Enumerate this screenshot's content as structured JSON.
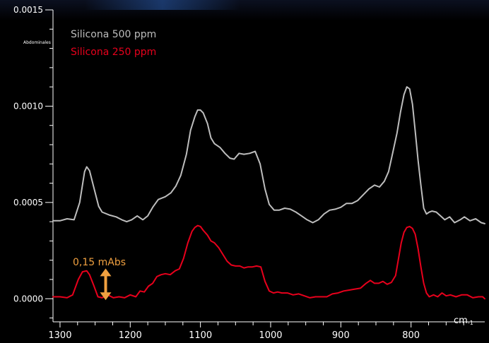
{
  "chart_data": {
    "type": "line",
    "ylabel": "Abdominales",
    "xunit": "cm",
    "xunit_exp": "-1",
    "x_axis_reversed": true,
    "xlim": [
      1310,
      695
    ],
    "ylim": [
      -0.00012,
      0.0015
    ],
    "yticks": [
      {
        "value": 0.0015,
        "label": "0.0015"
      },
      {
        "value": 0.001,
        "label": "0.0010"
      },
      {
        "value": 0.0005,
        "label": "0.0005"
      },
      {
        "value": 0.0,
        "label": "0.0000"
      }
    ],
    "xticks": [
      {
        "value": 1300,
        "label": "1300"
      },
      {
        "value": 1200,
        "label": "1200"
      },
      {
        "value": 1100,
        "label": "1100"
      },
      {
        "value": 1000,
        "label": "1000"
      },
      {
        "value": 900,
        "label": "900"
      },
      {
        "value": 800,
        "label": "800"
      }
    ],
    "grid": false,
    "legend_position": "top-left",
    "series": [
      {
        "name": "Silicona 500 ppm",
        "color": "#bdbdbd",
        "x": [
          1310,
          1300,
          1290,
          1280,
          1272,
          1265,
          1262,
          1258,
          1252,
          1245,
          1240,
          1230,
          1220,
          1212,
          1205,
          1198,
          1190,
          1182,
          1175,
          1168,
          1160,
          1150,
          1142,
          1135,
          1128,
          1120,
          1114,
          1108,
          1104,
          1100,
          1096,
          1090,
          1085,
          1080,
          1072,
          1065,
          1058,
          1052,
          1045,
          1038,
          1030,
          1022,
          1015,
          1008,
          1002,
          995,
          988,
          980,
          972,
          964,
          956,
          948,
          940,
          932,
          924,
          916,
          908,
          900,
          892,
          884,
          876,
          868,
          860,
          852,
          845,
          838,
          832,
          826,
          820,
          815,
          810,
          806,
          802,
          798,
          794,
          790,
          786,
          782,
          778,
          774,
          770,
          764,
          758,
          752,
          745,
          738,
          730,
          724,
          716,
          708,
          700,
          695
        ],
        "y": [
          0.000405,
          0.000405,
          0.000415,
          0.00041,
          0.0005,
          0.00066,
          0.000685,
          0.000665,
          0.00058,
          0.00048,
          0.00045,
          0.000435,
          0.000425,
          0.00041,
          0.0004,
          0.00041,
          0.00043,
          0.00041,
          0.00043,
          0.000475,
          0.000515,
          0.00053,
          0.00055,
          0.000585,
          0.00064,
          0.00075,
          0.000875,
          0.000945,
          0.00098,
          0.00098,
          0.000965,
          0.00091,
          0.000835,
          0.000805,
          0.000785,
          0.000755,
          0.00073,
          0.000725,
          0.000755,
          0.00075,
          0.000755,
          0.000765,
          0.0007,
          0.00057,
          0.00049,
          0.00046,
          0.00046,
          0.00047,
          0.000465,
          0.00045,
          0.00043,
          0.00041,
          0.000395,
          0.00041,
          0.00044,
          0.00046,
          0.000465,
          0.000475,
          0.000495,
          0.000495,
          0.00051,
          0.00054,
          0.00057,
          0.00059,
          0.00058,
          0.00061,
          0.00066,
          0.00076,
          0.00086,
          0.00097,
          0.00106,
          0.0011,
          0.00109,
          0.00101,
          0.00087,
          0.00072,
          0.00059,
          0.00047,
          0.00044,
          0.00045,
          0.000455,
          0.00045,
          0.00043,
          0.00041,
          0.000425,
          0.000395,
          0.00041,
          0.000425,
          0.000405,
          0.000415,
          0.000395,
          0.00039
        ]
      },
      {
        "name": "Silicona 250 ppm",
        "color": "#e8001c",
        "x": [
          1310,
          1300,
          1290,
          1282,
          1274,
          1268,
          1262,
          1258,
          1252,
          1246,
          1240,
          1232,
          1224,
          1216,
          1208,
          1200,
          1192,
          1186,
          1180,
          1174,
          1168,
          1162,
          1156,
          1150,
          1143,
          1136,
          1130,
          1124,
          1118,
          1112,
          1108,
          1104,
          1100,
          1096,
          1090,
          1085,
          1080,
          1074,
          1068,
          1062,
          1056,
          1050,
          1044,
          1038,
          1032,
          1026,
          1020,
          1014,
          1008,
          1002,
          996,
          990,
          984,
          976,
          968,
          960,
          952,
          944,
          936,
          928,
          920,
          912,
          904,
          896,
          888,
          880,
          872,
          864,
          858,
          852,
          846,
          840,
          834,
          828,
          822,
          818,
          814,
          810,
          806,
          802,
          798,
          794,
          790,
          786,
          782,
          778,
          774,
          768,
          762,
          756,
          750,
          744,
          736,
          728,
          720,
          712,
          704,
          698,
          695
        ],
        "y": [
          1e-05,
          1e-05,
          5e-06,
          2e-05,
          0.0001,
          0.00014,
          0.000145,
          0.000125,
          7e-05,
          1e-05,
          5e-06,
          2e-05,
          5e-06,
          1e-05,
          5e-06,
          2e-05,
          1e-05,
          4e-05,
          3.5e-05,
          6.5e-05,
          8e-05,
          0.000115,
          0.000125,
          0.00013,
          0.000125,
          0.000145,
          0.000155,
          0.00021,
          0.00029,
          0.00035,
          0.00037,
          0.00038,
          0.000375,
          0.000355,
          0.00033,
          0.0003,
          0.00029,
          0.000265,
          0.00023,
          0.000195,
          0.000175,
          0.00017,
          0.00017,
          0.00016,
          0.000165,
          0.000165,
          0.00017,
          0.000165,
          9e-05,
          4e-05,
          3e-05,
          3.5e-05,
          3e-05,
          3e-05,
          2e-05,
          2.5e-05,
          1.5e-05,
          5e-06,
          1e-05,
          1e-05,
          1e-05,
          2.5e-05,
          3e-05,
          4e-05,
          4.5e-05,
          5e-05,
          5.5e-05,
          8e-05,
          9.5e-05,
          8e-05,
          8e-05,
          9e-05,
          7.5e-05,
          8.5e-05,
          0.00012,
          0.000205,
          0.00029,
          0.000345,
          0.00037,
          0.000375,
          0.000365,
          0.000335,
          0.00026,
          0.000165,
          8e-05,
          3e-05,
          1e-05,
          2e-05,
          1e-05,
          3e-05,
          1.5e-05,
          2e-05,
          1e-05,
          2e-05,
          2e-05,
          5e-06,
          1e-05,
          1e-05,
          0.0
        ]
      }
    ],
    "annotation": {
      "text": "0,15 mAbs",
      "color": "#f0a040",
      "x": 1235,
      "y_from": 0.0,
      "y_to": 0.00015
    }
  }
}
